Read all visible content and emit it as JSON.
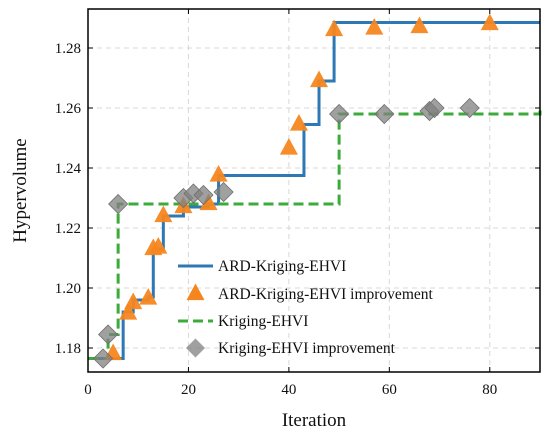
{
  "chart_data": {
    "type": "line",
    "xlabel": "Iteration",
    "ylabel": "Hypervolume",
    "xlim": [
      0,
      90
    ],
    "ylim": [
      1.172,
      1.293
    ],
    "xticks": [
      0,
      20,
      40,
      60,
      80
    ],
    "yticks": [
      1.18,
      1.2,
      1.22,
      1.24,
      1.26,
      1.28
    ],
    "x_tick_labels": [
      "0",
      "20",
      "40",
      "60",
      "80"
    ],
    "y_tick_labels": [
      "1.18",
      "1.20",
      "1.22",
      "1.24",
      "1.26",
      "1.28"
    ],
    "grid": true,
    "legend_position": "lower-right",
    "series": [
      {
        "name": "ARD-Kriging-EHVI",
        "kind": "step-line",
        "style": "solid",
        "color": "#2e78b5",
        "x": [
          2,
          5,
          7,
          9,
          12,
          13,
          15,
          19,
          24,
          26,
          40,
          43,
          45,
          46,
          48,
          49,
          90
        ],
        "y": [
          1.1765,
          1.1765,
          1.192,
          1.196,
          1.197,
          1.213,
          1.224,
          1.227,
          1.228,
          1.2375,
          1.2375,
          1.2545,
          1.2545,
          1.269,
          1.269,
          1.2885,
          1.2885
        ]
      },
      {
        "name": "ARD-Kriging-EHVI improvement",
        "kind": "markers",
        "marker": "triangle",
        "color": "#f5861f",
        "x": [
          5,
          8,
          9,
          12,
          13,
          14,
          15,
          19,
          24,
          26,
          40,
          42,
          46,
          49,
          57,
          66,
          80
        ],
        "y": [
          1.178,
          1.1915,
          1.195,
          1.1965,
          1.213,
          1.2135,
          1.224,
          1.227,
          1.228,
          1.2375,
          1.2465,
          1.2545,
          1.269,
          1.286,
          1.2865,
          1.287,
          1.288
        ]
      },
      {
        "name": "Kriging-EHVI",
        "kind": "step-line",
        "style": "dashed",
        "color": "#3bab3b",
        "x": [
          0,
          3,
          4,
          5,
          6,
          20,
          50,
          90
        ],
        "y": [
          1.1765,
          1.1765,
          1.1845,
          1.1845,
          1.228,
          1.228,
          1.258,
          1.26
        ]
      },
      {
        "name": "Kriging-EHVI improvement",
        "kind": "markers",
        "marker": "diamond",
        "color": "#808080",
        "x": [
          3,
          4,
          6,
          19,
          21,
          23,
          27,
          50,
          59,
          68,
          69,
          76
        ],
        "y": [
          1.1765,
          1.1845,
          1.228,
          1.23,
          1.2315,
          1.231,
          1.232,
          1.258,
          1.258,
          1.259,
          1.26,
          1.26
        ]
      }
    ]
  }
}
